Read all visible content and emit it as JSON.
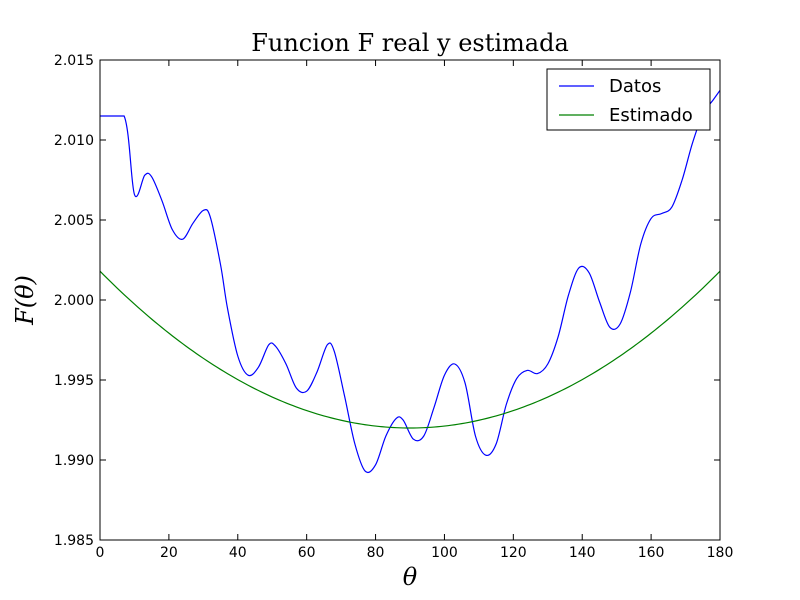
{
  "chart_data": {
    "type": "line",
    "title": "Funcion F real y estimada",
    "xlabel": "θ",
    "ylabel": "F(θ)",
    "xlim": [
      0,
      180
    ],
    "ylim": [
      1.985,
      2.015
    ],
    "x_ticks": [
      "0",
      "20",
      "40",
      "60",
      "80",
      "100",
      "120",
      "140",
      "160",
      "180"
    ],
    "y_ticks": [
      "1.985",
      "1.990",
      "1.995",
      "2.000",
      "2.005",
      "2.010",
      "2.015"
    ],
    "grid": false,
    "legend_position": "top-right",
    "series": [
      {
        "name": "Datos",
        "color": "#0000ff",
        "points": [
          [
            0,
            2.0115
          ],
          [
            7,
            2.0115
          ],
          [
            10,
            2.0066
          ],
          [
            13,
            2.0078
          ],
          [
            15,
            2.0077
          ],
          [
            18,
            2.0062
          ],
          [
            21,
            2.0044
          ],
          [
            24,
            2.0038
          ],
          [
            27,
            2.0048
          ],
          [
            30,
            2.0056
          ],
          [
            32,
            2.0052
          ],
          [
            35,
            2.0022
          ],
          [
            37,
            1.9995
          ],
          [
            40,
            1.9965
          ],
          [
            43,
            1.9953
          ],
          [
            46,
            1.9958
          ],
          [
            49,
            1.9972
          ],
          [
            51,
            1.9971
          ],
          [
            54,
            1.996
          ],
          [
            57,
            1.9945
          ],
          [
            60,
            1.9943
          ],
          [
            63,
            1.9955
          ],
          [
            66,
            1.9972
          ],
          [
            68,
            1.9968
          ],
          [
            71,
            1.994
          ],
          [
            74,
            1.991
          ],
          [
            77,
            1.9893
          ],
          [
            80,
            1.9897
          ],
          [
            83,
            1.9915
          ],
          [
            86,
            1.9926
          ],
          [
            88,
            1.9925
          ],
          [
            91,
            1.9913
          ],
          [
            94,
            1.9915
          ],
          [
            97,
            1.9933
          ],
          [
            100,
            1.9953
          ],
          [
            103,
            1.996
          ],
          [
            106,
            1.9948
          ],
          [
            109,
            1.9915
          ],
          [
            112,
            1.9903
          ],
          [
            115,
            1.991
          ],
          [
            118,
            1.9935
          ],
          [
            121,
            1.9951
          ],
          [
            124,
            1.9956
          ],
          [
            127,
            1.9954
          ],
          [
            130,
            1.996
          ],
          [
            133,
            1.9977
          ],
          [
            136,
            2.0003
          ],
          [
            139,
            2.002
          ],
          [
            142,
            2.0017
          ],
          [
            145,
            1.9999
          ],
          [
            148,
            1.9983
          ],
          [
            151,
            1.9985
          ],
          [
            154,
            2.0005
          ],
          [
            157,
            2.0035
          ],
          [
            160,
            2.0051
          ],
          [
            163,
            2.0054
          ],
          [
            166,
            2.0058
          ],
          [
            169,
            2.0075
          ],
          [
            172,
            2.0098
          ],
          [
            175,
            2.0116
          ],
          [
            178,
            2.0125
          ],
          [
            180,
            2.0131
          ]
        ]
      },
      {
        "name": "Estimado",
        "color": "#008000",
        "formula": "1.992 + 0.0098*((theta-90)/90)^2"
      }
    ]
  }
}
